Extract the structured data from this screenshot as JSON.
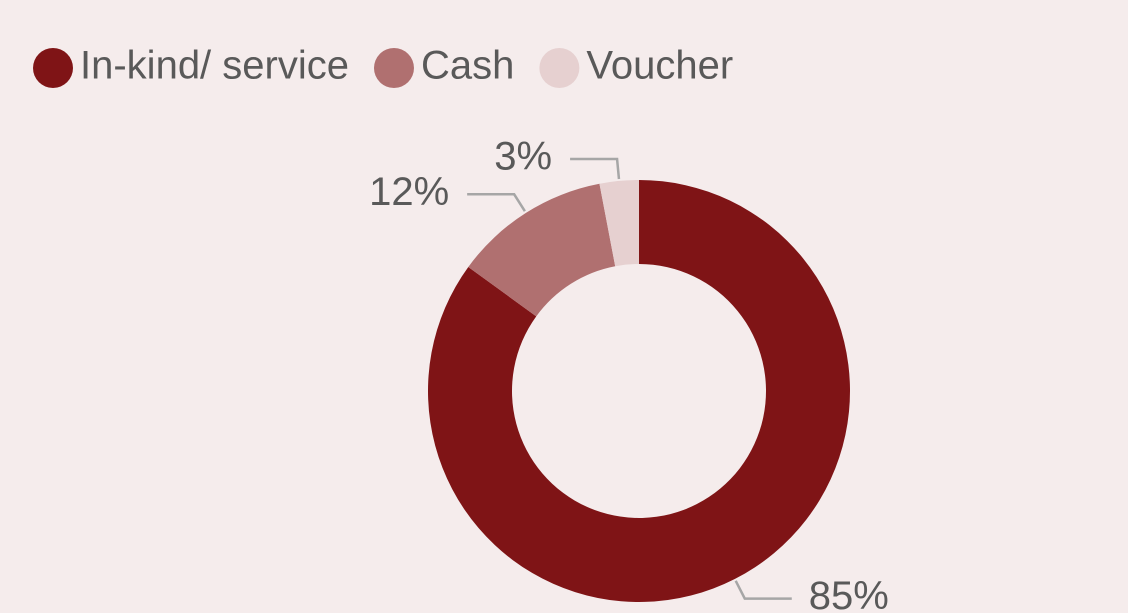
{
  "chart_data": {
    "type": "donut",
    "categories": [
      "In-kind/ service",
      "Cash",
      "Voucher"
    ],
    "values": [
      85,
      12,
      3
    ],
    "value_labels": [
      "85%",
      "12%",
      "3%"
    ],
    "colors": [
      "#7f1416",
      "#b07070",
      "#e6d0d0"
    ],
    "legend": "top-left"
  }
}
